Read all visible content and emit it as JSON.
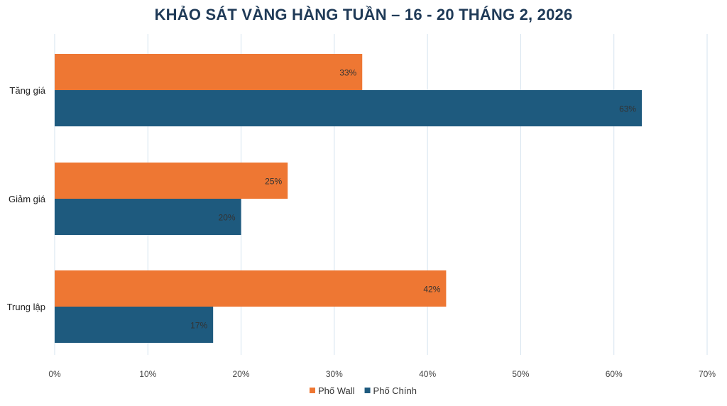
{
  "chart_data": {
    "type": "bar",
    "orientation": "horizontal",
    "title": "KHẢO SÁT VÀNG HÀNG TUẦN – 16 - 20 THÁNG 2, 2026",
    "categories": [
      "Tăng giá",
      "Giảm giá",
      "Trung lập"
    ],
    "series": [
      {
        "name": "Phố Wall",
        "color": "#ee7733",
        "values": [
          33,
          25,
          42
        ],
        "labels": [
          "33%",
          "25%",
          "42%"
        ]
      },
      {
        "name": "Phố Chính",
        "color": "#1e5a7e",
        "values": [
          63,
          20,
          17
        ],
        "labels": [
          "63%",
          "20%",
          "17%"
        ]
      }
    ],
    "xlim": [
      0,
      70
    ],
    "xticks": [
      0,
      10,
      20,
      30,
      40,
      50,
      60,
      70
    ],
    "xtick_labels": [
      "0%",
      "10%",
      "20%",
      "30%",
      "40%",
      "50%",
      "60%",
      "70%"
    ],
    "grid": "vertical",
    "legend_position": "bottom"
  }
}
